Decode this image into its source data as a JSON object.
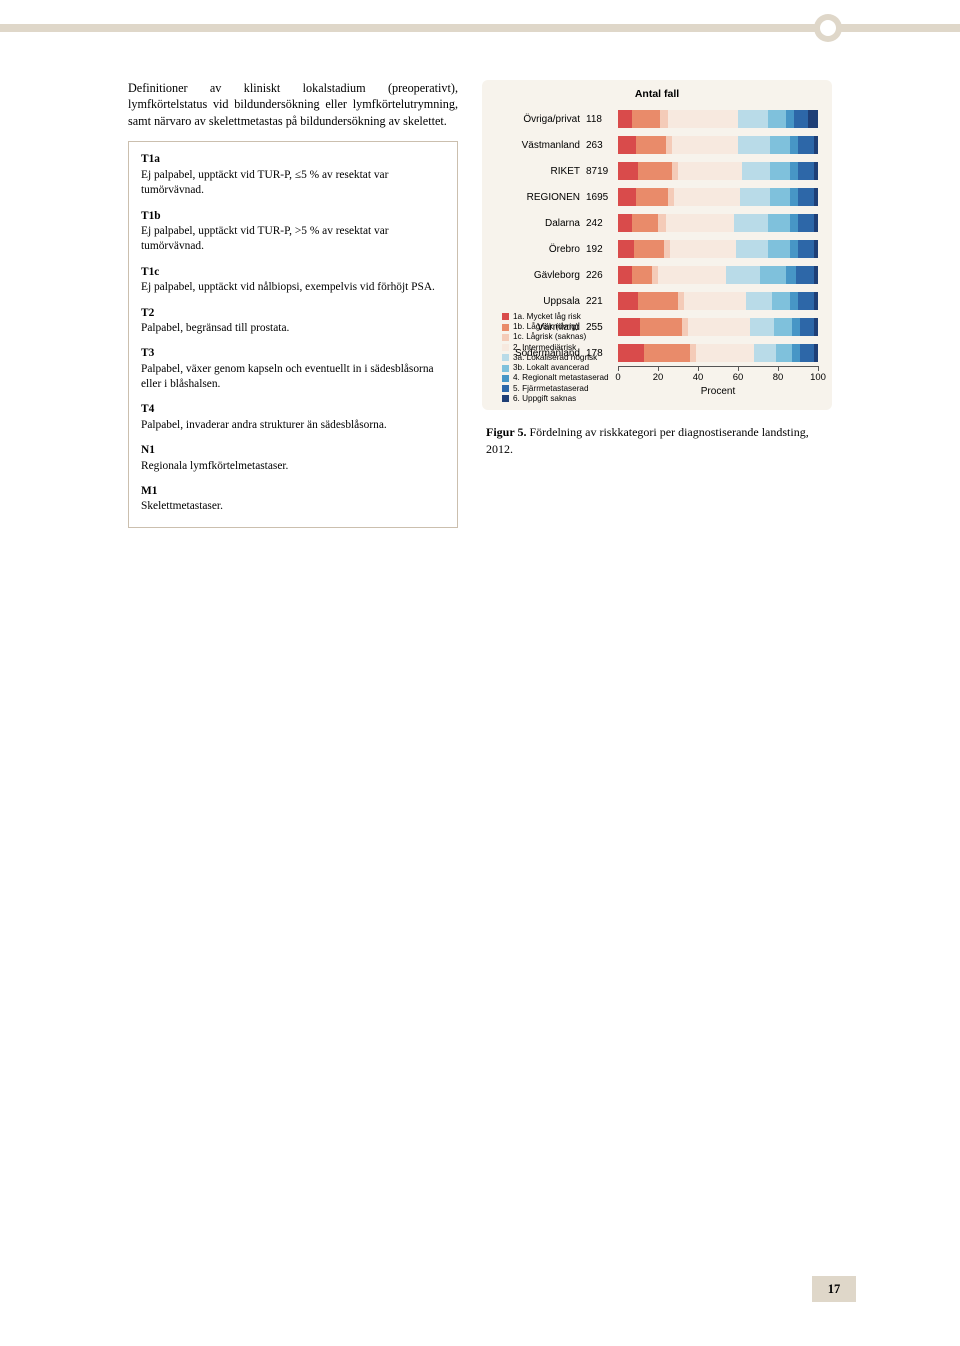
{
  "intro": "Definitioner av kliniskt lokalstadium (preoperativt), lymfkörtelstatus vid bildundersökning eller lymfkörtelutrymning, samt närvaro av skelettmetastas på bildundersökning av skelettet.",
  "defs": [
    {
      "code": "T1a",
      "desc": "Ej palpabel, upptäckt vid TUR-P, ≤5 % av resektat var tumörvävnad."
    },
    {
      "code": "T1b",
      "desc": "Ej palpabel, upptäckt vid TUR-P, >5 % av resektat var tumörvävnad."
    },
    {
      "code": "T1c",
      "desc": "Ej palpabel, upptäckt vid nålbiopsi, exempelvis vid förhöjt PSA."
    },
    {
      "code": "T2",
      "desc": "Palpabel, begränsad till prostata."
    },
    {
      "code": "T3",
      "desc": "Palpabel, växer genom kapseln och eventuellt in i sädesblåsorna eller i blåshalsen."
    },
    {
      "code": "T4",
      "desc": "Palpabel, invaderar andra strukturer än sädesblåsorna."
    },
    {
      "code": "N1",
      "desc": "Regionala lymfkörtelmetastaser."
    },
    {
      "code": "M1",
      "desc": "Skelettmetastaser."
    }
  ],
  "chart": {
    "title": "Antal fall",
    "xlabel": "Procent",
    "xlim": [
      0,
      100
    ],
    "xticks": [
      0,
      20,
      40,
      60,
      80,
      100
    ],
    "colors": {
      "1a": "#d94b4b",
      "1b": "#e98b6a",
      "1c": "#f4cbb8",
      "2": "#f7e9df",
      "3a": "#b9dbe8",
      "3b": "#7fc1dc",
      "4": "#4796c6",
      "5": "#2d67a8",
      "6": "#1f3f76"
    },
    "legend": [
      {
        "key": "1a",
        "label": "1a. Mycket låg risk"
      },
      {
        "key": "1b",
        "label": "1b. Lågrisk (övrig)"
      },
      {
        "key": "1c",
        "label": "1c. Lågrisk (saknas)"
      },
      {
        "key": "2",
        "label": "2. Intermediärrisk"
      },
      {
        "key": "3a",
        "label": "3a. Lokaliserad högrisk"
      },
      {
        "key": "3b",
        "label": "3b. Lokalt avancerad"
      },
      {
        "key": "4",
        "label": "4. Regionalt metastaserad"
      },
      {
        "key": "5",
        "label": "5. Fjärrmetastaserad"
      },
      {
        "key": "6",
        "label": "6. Uppgift saknas"
      }
    ],
    "rows": [
      {
        "label": "Övriga/privat",
        "count": "118",
        "segs": [
          7,
          14,
          4,
          35,
          15,
          9,
          4,
          7,
          5
        ]
      },
      {
        "label": "Västmanland",
        "count": "263",
        "segs": [
          9,
          15,
          3,
          33,
          16,
          10,
          4,
          8,
          2
        ]
      },
      {
        "label": "RIKET",
        "count": "8719",
        "segs": [
          10,
          17,
          3,
          32,
          14,
          10,
          4,
          8,
          2
        ]
      },
      {
        "label": "REGIONEN",
        "count": "1695",
        "segs": [
          9,
          16,
          3,
          33,
          15,
          10,
          4,
          8,
          2
        ]
      },
      {
        "label": "Dalarna",
        "count": "242",
        "segs": [
          7,
          13,
          4,
          34,
          17,
          11,
          4,
          8,
          2
        ]
      },
      {
        "label": "Örebro",
        "count": "192",
        "segs": [
          8,
          15,
          3,
          33,
          16,
          11,
          4,
          8,
          2
        ]
      },
      {
        "label": "Gävleborg",
        "count": "226",
        "segs": [
          7,
          10,
          3,
          34,
          17,
          13,
          5,
          9,
          2
        ]
      },
      {
        "label": "Uppsala",
        "count": "221",
        "segs": [
          10,
          20,
          3,
          31,
          13,
          9,
          4,
          8,
          2
        ]
      },
      {
        "label": "Värmland",
        "count": "255",
        "segs": [
          11,
          21,
          3,
          31,
          12,
          9,
          4,
          7,
          2
        ]
      },
      {
        "label": "Södermanland",
        "count": "178",
        "segs": [
          13,
          23,
          3,
          29,
          11,
          8,
          4,
          7,
          2
        ]
      }
    ]
  },
  "caption_prefix": "Figur 5.",
  "caption_rest": " Fördelning av riskkategori per diagnostiserande landsting, 2012.",
  "page_number": "17"
}
